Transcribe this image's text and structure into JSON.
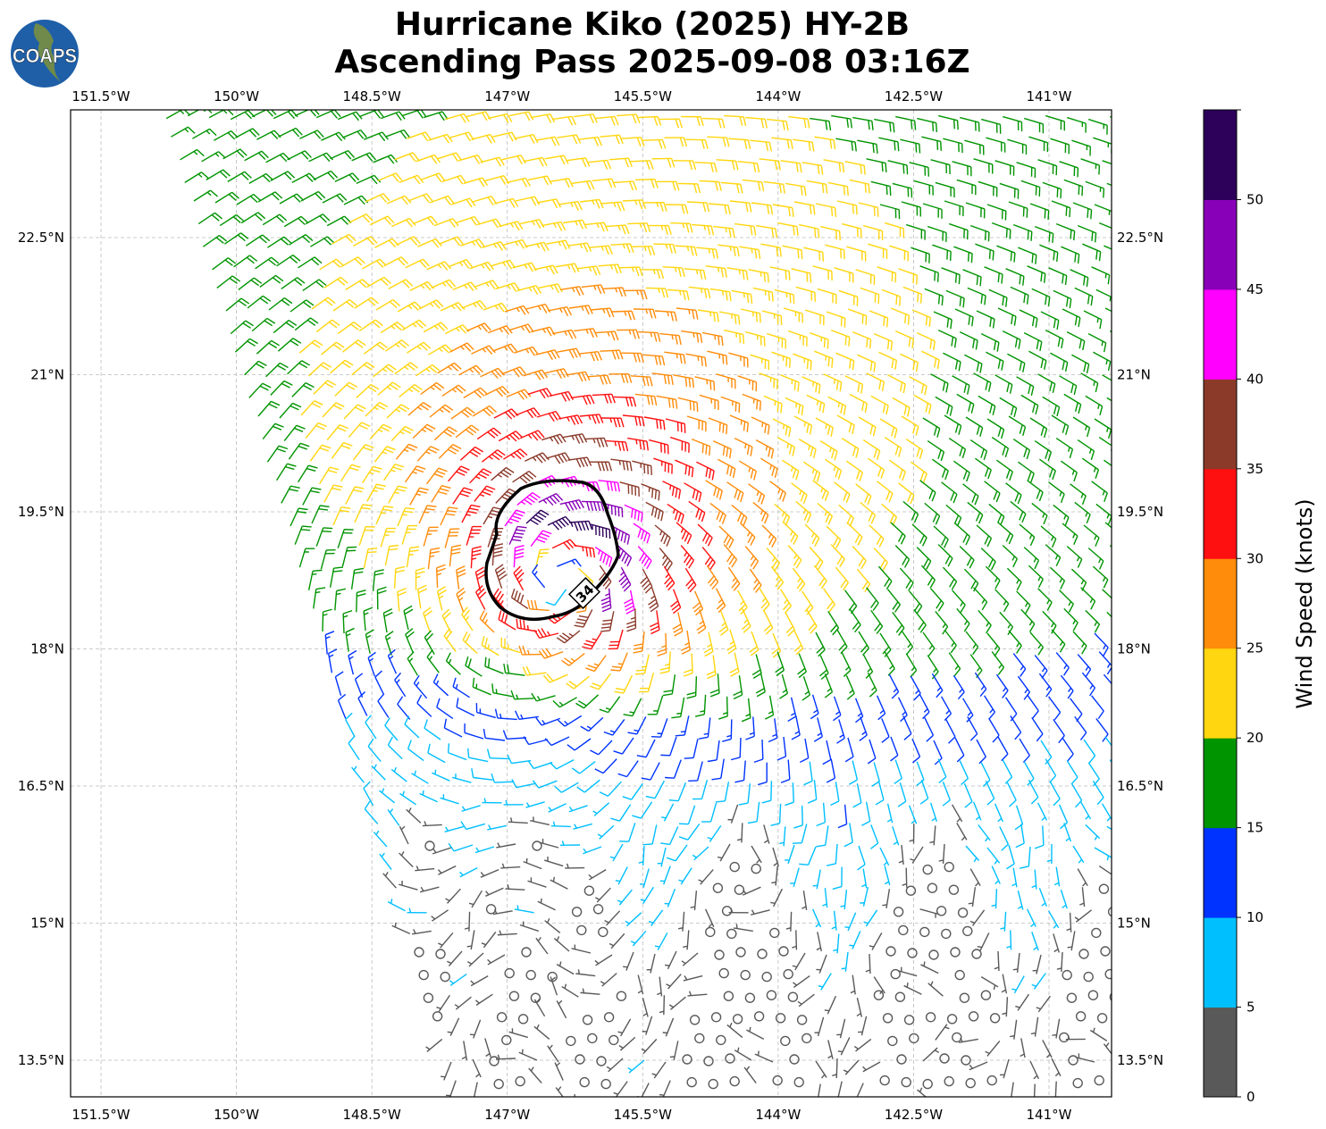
{
  "title": {
    "line1": "Hurricane Kiko (2025) HY-2B",
    "line2": "Ascending Pass 2025-09-08 03:16Z"
  },
  "logo": {
    "text": "COAPS"
  },
  "chart_data": {
    "type": "wind-barb-map",
    "lon_ticks": [
      "151.5°W",
      "150°W",
      "148.5°W",
      "147°W",
      "145.5°W",
      "144°W",
      "142.5°W",
      "141°W"
    ],
    "lon_values": [
      -151.5,
      -150,
      -148.5,
      -147,
      -145.5,
      -144,
      -142.5,
      -141
    ],
    "lat_ticks": [
      "22.5°N",
      "21°N",
      "19.5°N",
      "18°N",
      "16.5°N",
      "15°N",
      "13.5°N"
    ],
    "lat_values": [
      22.5,
      21,
      19.5,
      18,
      16.5,
      15,
      13.5
    ],
    "lon_range": [
      -151.83,
      -140.7
    ],
    "lat_range": [
      13.1,
      23.9
    ],
    "grid": true,
    "storm_center": {
      "lon": -146.4,
      "lat": 18.85
    },
    "max_wind_kt": 47,
    "contour_label": "34",
    "colorbar": {
      "label": "Wind Speed (knots)",
      "bounds": [
        0,
        5,
        10,
        15,
        20,
        25,
        30,
        35,
        40,
        45,
        50,
        55
      ],
      "tick_labels": [
        "0",
        "5",
        "10",
        "15",
        "20",
        "25",
        "30",
        "35",
        "40",
        "45",
        "50"
      ],
      "colors": [
        "#595959",
        "#00bfff",
        "#0033ff",
        "#009400",
        "#ffd60f",
        "#ff8c0a",
        "#ff1010",
        "#8b3a2a",
        "#ff00ff",
        "#8800b8",
        "#2d005a"
      ]
    }
  }
}
